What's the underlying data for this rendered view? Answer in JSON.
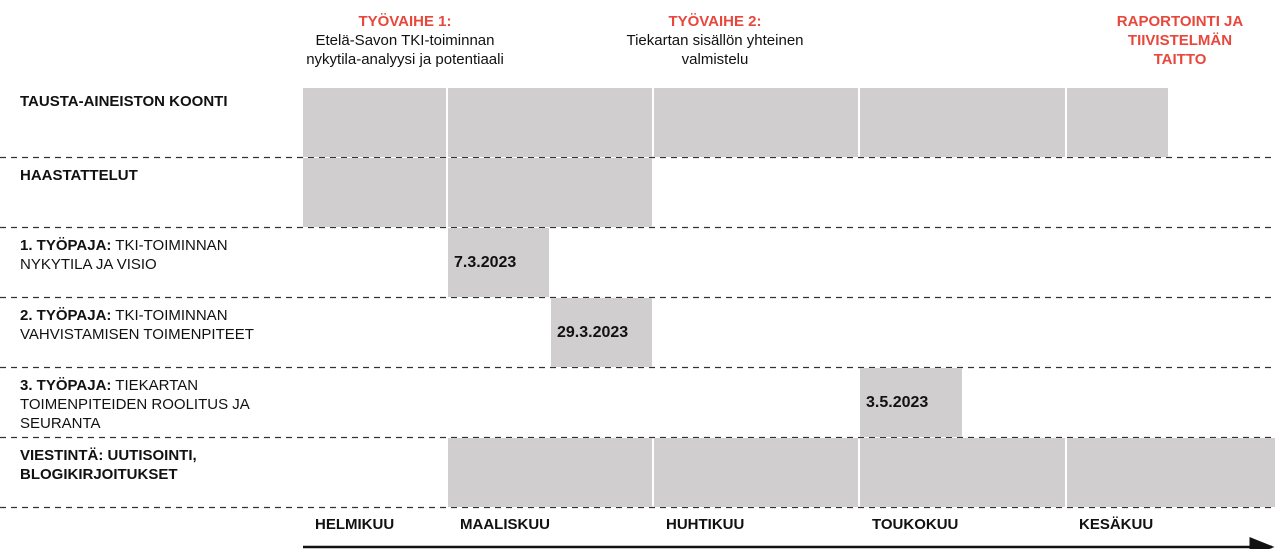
{
  "phases": [
    {
      "title": "TYÖVAIHE 1:",
      "lines": [
        "Etelä-Savon TKI-toiminnan",
        "nykytila-analyysi ja potentiaali"
      ]
    },
    {
      "title": "TYÖVAIHE 2:",
      "lines": [
        "Tiekartan sisällön yhteinen",
        "valmistelu"
      ]
    },
    {
      "title": "RAPORTOINTI JA TIIVISTELMÄN TAITTO",
      "lines": []
    }
  ],
  "rows": [
    {
      "bold": "TAUSTA-AINEISTON KOONTI",
      "text": ""
    },
    {
      "bold": "HAASTATTELUT",
      "text": ""
    },
    {
      "bold": "1. TYÖPAJA:",
      "text": " TKI-TOIMINNAN NYKYTILA JA VISIO",
      "date": "7.3.2023"
    },
    {
      "bold": "2. TYÖPAJA:",
      "text": " TKI-TOIMINNAN VAHVISTAMISEN TOIMENPITEET",
      "date": "29.3.2023"
    },
    {
      "bold": "3. TYÖPAJA:",
      "text": " TIEKARTAN TOIMENPITEIDEN ROOLITUS JA SEURANTA",
      "date": "3.5.2023"
    },
    {
      "bold": "VIESTINTÄ: UUTISOINTI, BLOGIKIRJOITUKSET",
      "text": ""
    }
  ],
  "months": [
    "HELMIKUU",
    "MAALISKUU",
    "HUHTIKUU",
    "TOUKOKUU",
    "KESÄKUU"
  ]
}
